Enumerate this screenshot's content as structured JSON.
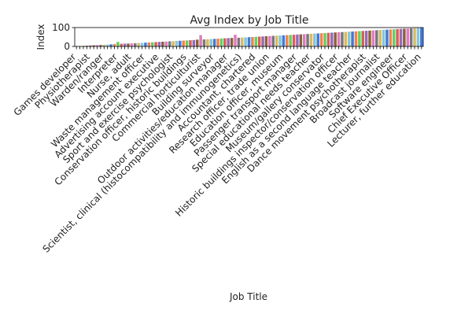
{
  "chart_data": {
    "type": "bar",
    "title": "Avg Index by Job Title",
    "xlabel": "Job Title",
    "ylabel": "Index",
    "ylim": [
      0,
      100
    ],
    "yticks": [
      0,
      100
    ],
    "grid": false,
    "legend": "none",
    "palette": [
      "#4878d0",
      "#ee854a",
      "#6acc64",
      "#d65f5f",
      "#956cb4",
      "#8c613c",
      "#dc7ec0",
      "#797979",
      "#d5bb67",
      "#82c6e2"
    ],
    "visible_tick_labels": [
      "Games developer",
      "Physiotherapist",
      "Warden/ranger",
      "Interpreter",
      "Nurse, adult",
      "Waste management officer",
      "Advertising account executive",
      "Sport and exercise psychologist",
      "Conservation officer, historic buildings",
      "Commercial horticulturist",
      "Building surveyor",
      "Outdoor activities/education manager",
      "Scientist, clinical (histocompatibility and immunogenetics)",
      "Accountant, chartered",
      "Research officer, trade union",
      "Education officer, museum",
      "Passenger transport manager",
      "Special educational needs teacher",
      "Museum/gallery conservator",
      "Historic buildings inspector/conservation officer",
      "English as a second language teacher",
      "Dance movement psychotherapist",
      "Broadcast journalist",
      "Software engineer",
      "Chief Executive Officer",
      "Lecturer, further education"
    ],
    "values": [
      1,
      2,
      3,
      4,
      5,
      6,
      7,
      8,
      9,
      10,
      11,
      13,
      24,
      14,
      15,
      15,
      16,
      17,
      18,
      19,
      20,
      21,
      22,
      23,
      24,
      25,
      26,
      27,
      28,
      29,
      30,
      31,
      32,
      33,
      34,
      36,
      60,
      37,
      38,
      39,
      40,
      41,
      42,
      43,
      44,
      45,
      62,
      46,
      47,
      48,
      49,
      50,
      51,
      52,
      53,
      54,
      55,
      56,
      57,
      58,
      59,
      60,
      61,
      62,
      63,
      64,
      65,
      66,
      67,
      68,
      69,
      70,
      71,
      72,
      73,
      74,
      75,
      76,
      77,
      78,
      79,
      80,
      81,
      82,
      83,
      84,
      85,
      86,
      87,
      88,
      89,
      90,
      91,
      92,
      93,
      94,
      95,
      96,
      97,
      98,
      99
    ]
  }
}
